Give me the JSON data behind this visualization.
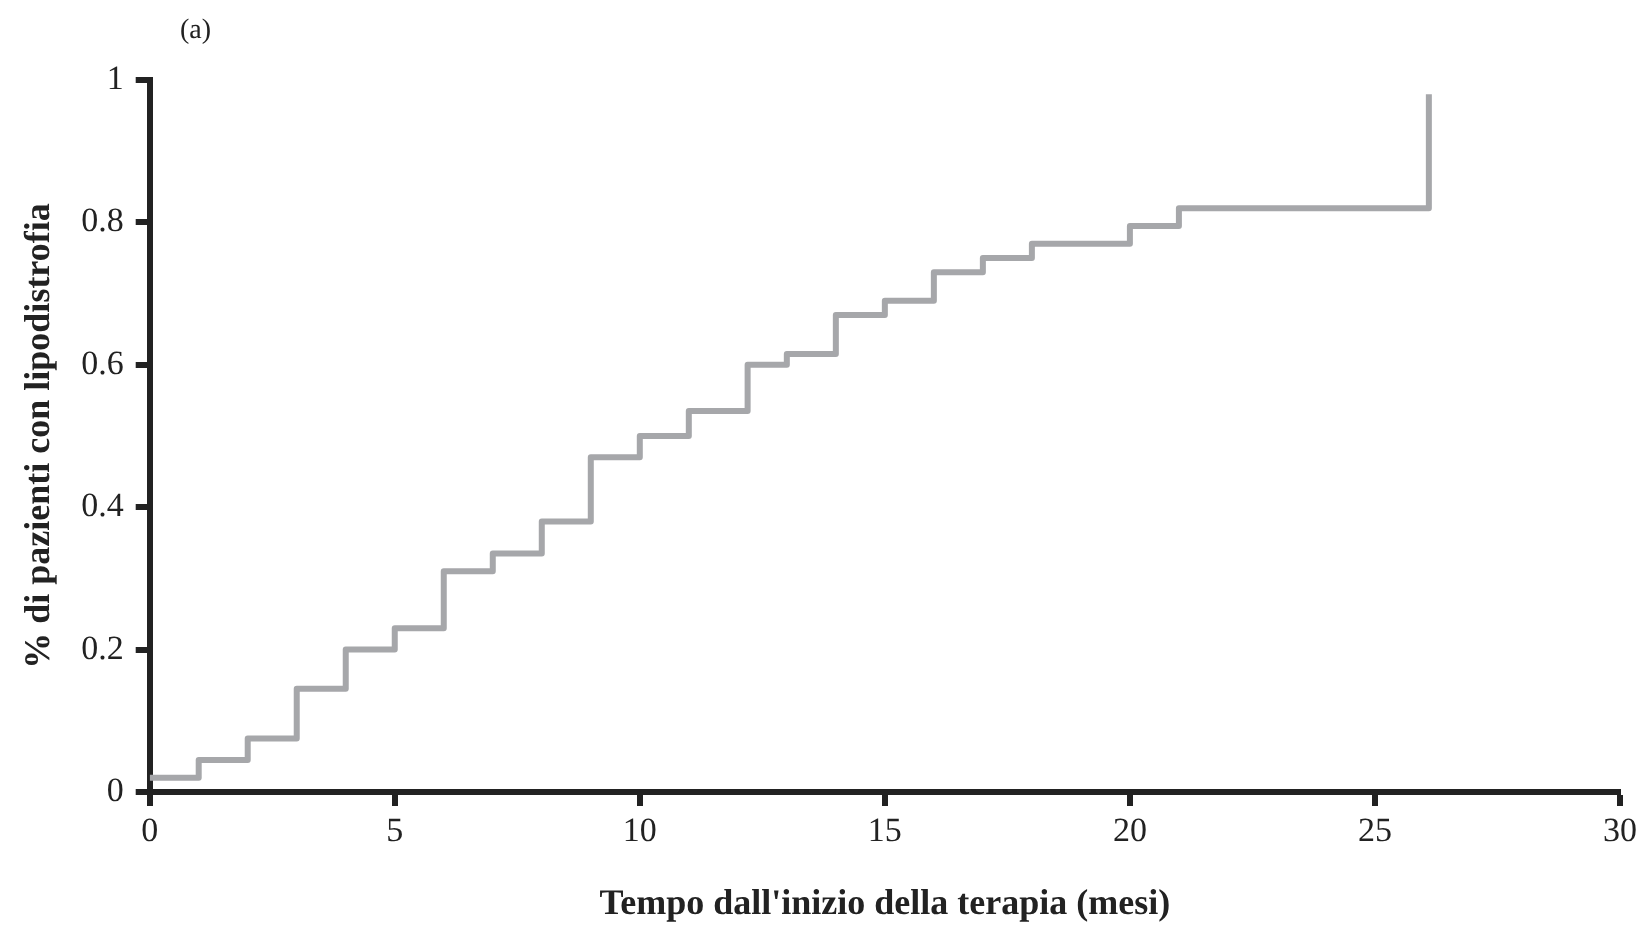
{
  "chart_data": {
    "type": "step",
    "xlabel": "Tempo dall'inizio della terapia (mesi)",
    "ylabel": "% di pazienti con lipodistrofia",
    "annotations": [
      "(a)"
    ],
    "x": [
      0,
      1,
      2,
      3,
      4,
      5,
      6,
      7,
      8,
      9,
      10,
      11,
      12.2,
      13,
      14,
      15,
      16,
      17,
      18,
      20,
      21,
      26.1
    ],
    "series": [
      {
        "color": "#a6a7aa",
        "values": [
          0.02,
          0.045,
          0.075,
          0.145,
          0.2,
          0.23,
          0.31,
          0.335,
          0.38,
          0.47,
          0.5,
          0.535,
          0.6,
          0.615,
          0.67,
          0.69,
          0.73,
          0.75,
          0.77,
          0.795,
          0.82,
          0.98
        ]
      }
    ],
    "xlim": [
      0,
      30
    ],
    "xticks": [
      0,
      5,
      10,
      15,
      20,
      25,
      30
    ],
    "ylim": [
      0,
      1
    ],
    "yticks": [
      0,
      0.2,
      0.4,
      0.6,
      0.8,
      1
    ],
    "grid": false,
    "legend": false,
    "marker": "none",
    "line_style": "solid"
  }
}
